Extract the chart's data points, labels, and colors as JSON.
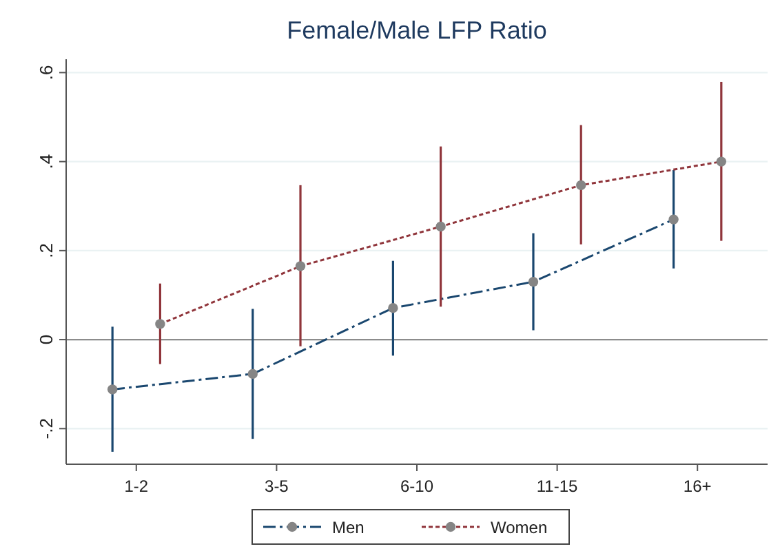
{
  "chart_data": {
    "type": "line",
    "title": "Female/Male LFP Ratio",
    "categories": [
      "1-2",
      "3-5",
      "6-10",
      "11-15",
      "16+"
    ],
    "ylim": [
      -0.28,
      0.63
    ],
    "yticks": [
      {
        "value": -0.2,
        "label": "-.2"
      },
      {
        "value": 0,
        "label": "0"
      },
      {
        "value": 0.2,
        "label": ".2"
      },
      {
        "value": 0.4,
        "label": ".4"
      },
      {
        "value": 0.6,
        "label": ".6"
      }
    ],
    "grid": "y",
    "legend": "bottom",
    "marker": "circle",
    "ref_lines": [
      {
        "axis": "y",
        "value": 0,
        "color": "#8c8c8c"
      }
    ],
    "series": [
      {
        "name": "Men",
        "color": "#1a476f",
        "line_style": "dashed",
        "values": [
          -0.112,
          -0.077,
          0.071,
          0.13,
          0.27
        ],
        "errors": [
          [
            -0.252,
            0.029
          ],
          [
            -0.223,
            0.069
          ],
          [
            -0.036,
            0.177
          ],
          [
            0.021,
            0.239
          ],
          [
            0.16,
            0.381
          ]
        ]
      },
      {
        "name": "Women",
        "color": "#90353b",
        "line_style": "dotted",
        "values": [
          0.035,
          0.165,
          0.254,
          0.347,
          0.4
        ],
        "errors": [
          [
            -0.055,
            0.126
          ],
          [
            -0.015,
            0.347
          ],
          [
            0.074,
            0.434
          ],
          [
            0.214,
            0.482
          ],
          [
            0.222,
            0.579
          ]
        ]
      }
    ]
  }
}
